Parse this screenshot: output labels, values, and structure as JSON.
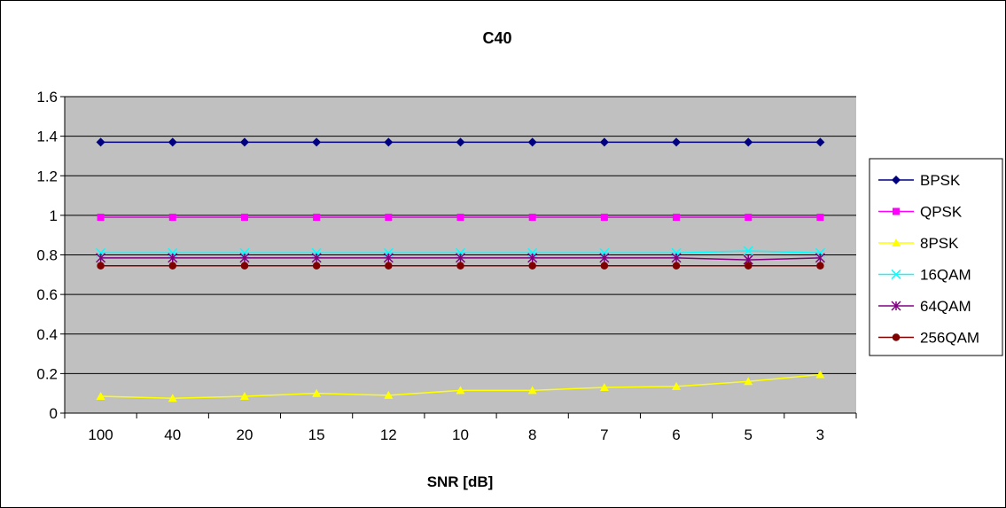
{
  "chart_data": {
    "type": "line",
    "title": "C40",
    "xlabel": "SNR [dB]",
    "ylabel": "",
    "categories": [
      "100",
      "40",
      "20",
      "15",
      "12",
      "10",
      "8",
      "7",
      "6",
      "5",
      "3"
    ],
    "ylim": [
      0,
      1.6
    ],
    "yticks": [
      "0",
      "0.2",
      "0.4",
      "0.6",
      "0.8",
      "1",
      "1.2",
      "1.4",
      "1.6"
    ],
    "grid": true,
    "legend_position": "right",
    "plot_background": "#C0C0C0",
    "series": [
      {
        "name": "BPSK",
        "color": "#000080",
        "marker": "diamond",
        "values": [
          1.37,
          1.37,
          1.37,
          1.37,
          1.37,
          1.37,
          1.37,
          1.37,
          1.37,
          1.37,
          1.37
        ]
      },
      {
        "name": "QPSK",
        "color": "#FF00FF",
        "marker": "square",
        "values": [
          0.99,
          0.99,
          0.99,
          0.99,
          0.99,
          0.99,
          0.99,
          0.99,
          0.99,
          0.99,
          0.99
        ]
      },
      {
        "name": "8PSK",
        "color": "#FFFF00",
        "marker": "triangle",
        "values": [
          0.085,
          0.075,
          0.085,
          0.1,
          0.09,
          0.115,
          0.115,
          0.13,
          0.135,
          0.16,
          0.195
        ]
      },
      {
        "name": "16QAM",
        "color": "#00FFFF",
        "marker": "x",
        "values": [
          0.81,
          0.81,
          0.81,
          0.81,
          0.81,
          0.81,
          0.81,
          0.81,
          0.81,
          0.82,
          0.81
        ]
      },
      {
        "name": "64QAM",
        "color": "#800080",
        "marker": "asterisk",
        "values": [
          0.785,
          0.785,
          0.785,
          0.785,
          0.785,
          0.785,
          0.785,
          0.785,
          0.785,
          0.775,
          0.785
        ]
      },
      {
        "name": "256QAM",
        "color": "#800000",
        "marker": "circle",
        "values": [
          0.745,
          0.745,
          0.745,
          0.745,
          0.745,
          0.745,
          0.745,
          0.745,
          0.745,
          0.745,
          0.745
        ]
      }
    ]
  }
}
